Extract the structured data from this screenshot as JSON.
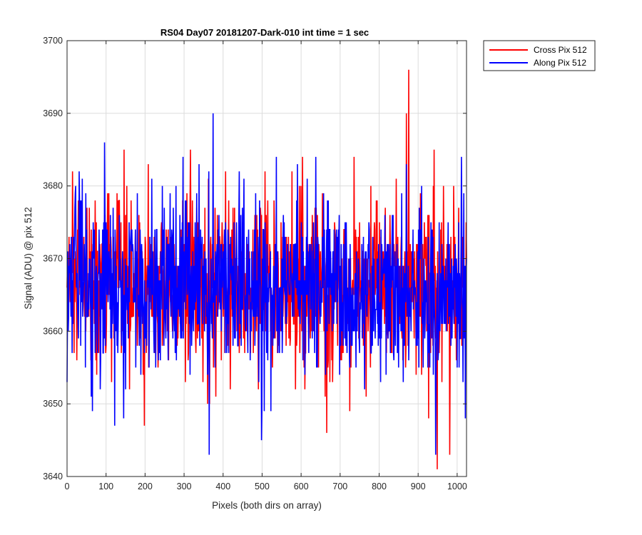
{
  "chart_data": {
    "type": "line",
    "title": "RS04 Day07 20181207-Dark-010 int time = 1 sec",
    "xlabel": "Pixels (both dirs on array)",
    "ylabel": "Signal (ADU) @ pix 512",
    "xlim": [
      0,
      1024
    ],
    "ylim": [
      3640,
      3700
    ],
    "xticks": [
      "0",
      "100",
      "200",
      "300",
      "400",
      "500",
      "600",
      "700",
      "800",
      "900",
      "1000"
    ],
    "yticks": [
      "3640",
      "3650",
      "3660",
      "3670",
      "3680",
      "3690",
      "3700"
    ],
    "grid": true,
    "legend_position": "outside-top-right",
    "series": [
      {
        "name": "Cross Pix 512",
        "color": "#ff0000",
        "noise_center": 3666,
        "noise_spread": 6,
        "n_points": 1024,
        "highlights": [
          [
            14,
            3682
          ],
          [
            146,
            3685
          ],
          [
            198,
            3647
          ],
          [
            316,
            3685
          ],
          [
            365,
            3650
          ],
          [
            665,
            3646
          ],
          [
            869,
            3690
          ],
          [
            875,
            3696
          ],
          [
            940,
            3685
          ],
          [
            948,
            3641
          ],
          [
            980,
            3643
          ],
          [
            990,
            3680
          ]
        ]
      },
      {
        "name": "Along Pix 512",
        "color": "#0000ff",
        "noise_center": 3666,
        "noise_spread": 6,
        "n_points": 1024,
        "highlights": [
          [
            0,
            3653
          ],
          [
            96,
            3686
          ],
          [
            122,
            3647
          ],
          [
            364,
            3643
          ],
          [
            374,
            3690
          ],
          [
            498,
            3645
          ],
          [
            522,
            3649
          ],
          [
            590,
            3683
          ],
          [
            944,
            3643
          ],
          [
            1020,
            3648
          ]
        ]
      }
    ]
  }
}
